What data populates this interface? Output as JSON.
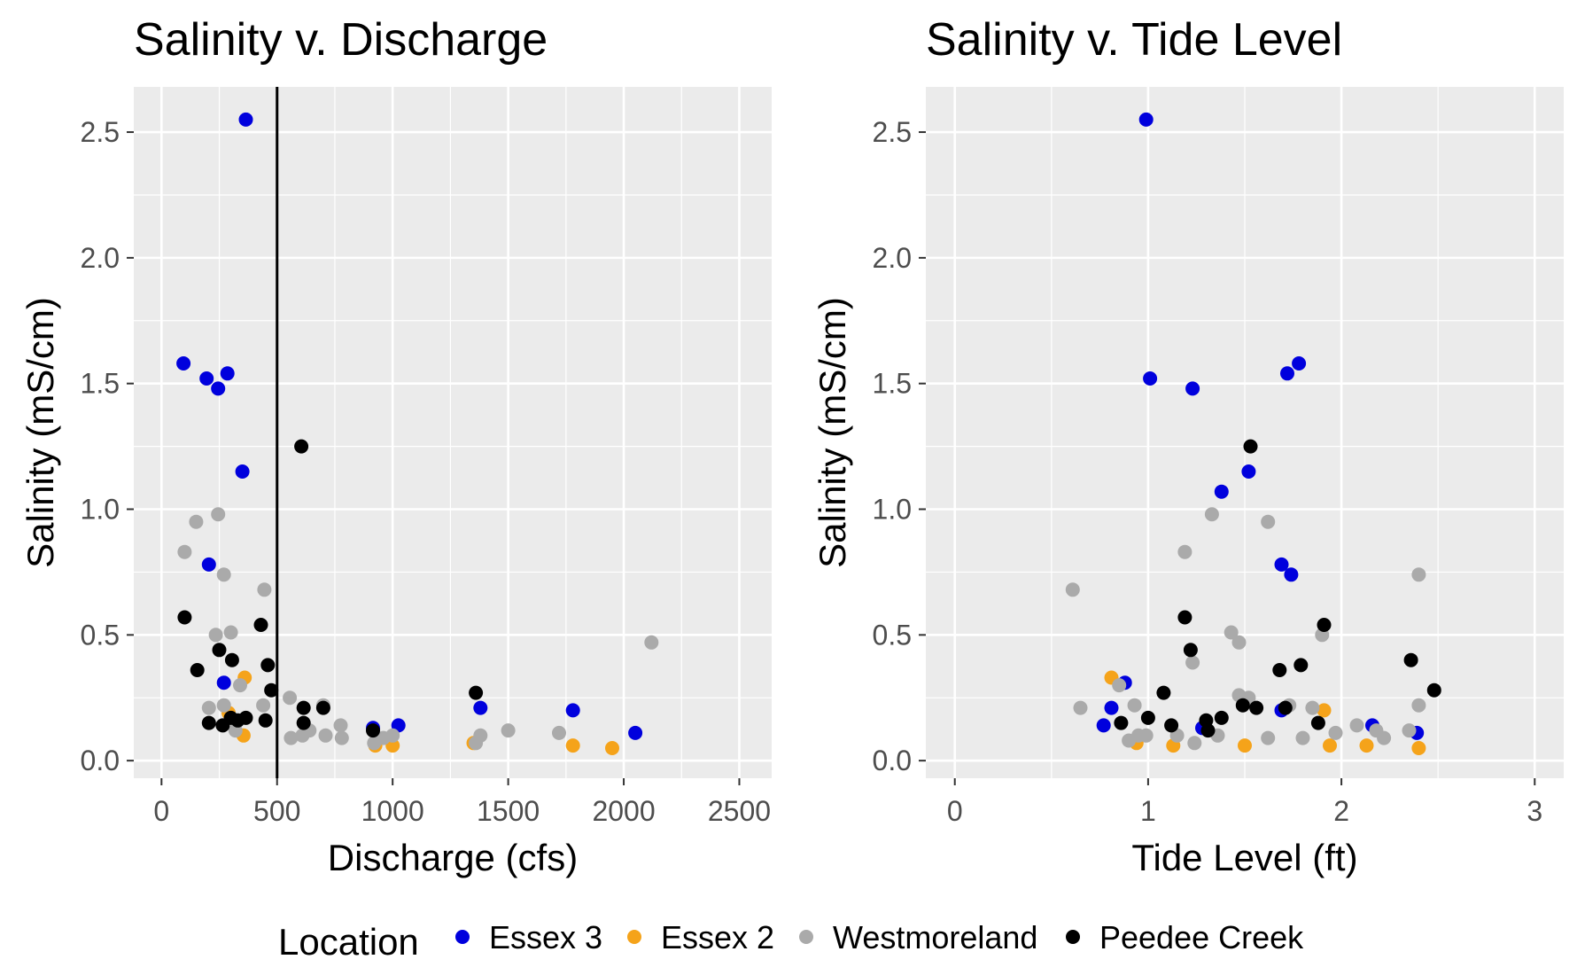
{
  "legend": {
    "title": "Location",
    "entries": [
      {
        "name": "Essex 3",
        "color": "#0000dd"
      },
      {
        "name": "Essex 2",
        "color": "#f5a31a"
      },
      {
        "name": "Westmoreland",
        "color": "#aaaaaa"
      },
      {
        "name": "Peedee Creek",
        "color": "#000000"
      }
    ],
    "placement": "bottom"
  },
  "chart_data": [
    {
      "type": "scatter",
      "title": "Salinity v. Discharge",
      "xlabel": "Discharge (cfs)",
      "ylabel": "Salinity (mS/cm)",
      "xlim": [
        -120,
        2640
      ],
      "ylim": [
        -0.07,
        2.68
      ],
      "xticks": [
        0,
        500,
        1000,
        1500,
        2000,
        2500
      ],
      "xtick_labels": [
        "0",
        "500",
        "1000",
        "1500",
        "2000",
        "2500"
      ],
      "yticks": [
        0,
        0.5,
        1.0,
        1.5,
        2.0,
        2.5
      ],
      "ytick_labels": [
        "0.0",
        "0.5",
        "1.0",
        "1.5",
        "2.0",
        "2.5"
      ],
      "grid": true,
      "vline": 500,
      "series": [
        {
          "name": "Essex 3",
          "points": [
            [
              365,
              2.55
            ],
            [
              95,
              1.58
            ],
            [
              195,
              1.52
            ],
            [
              285,
              1.54
            ],
            [
              245,
              1.48
            ],
            [
              350,
              1.15
            ],
            [
              205,
              0.78
            ],
            [
              270,
              0.31
            ],
            [
              915,
              0.13
            ],
            [
              1025,
              0.14
            ],
            [
              1380,
              0.21
            ],
            [
              1780,
              0.2
            ],
            [
              2050,
              0.11
            ]
          ]
        },
        {
          "name": "Essex 2",
          "points": [
            [
              360,
              0.33
            ],
            [
              290,
              0.19
            ],
            [
              355,
              0.1
            ],
            [
              925,
              0.06
            ],
            [
              1000,
              0.06
            ],
            [
              1350,
              0.07
            ],
            [
              1780,
              0.06
            ],
            [
              1950,
              0.05
            ]
          ]
        },
        {
          "name": "Westmoreland",
          "points": [
            [
              100,
              0.83
            ],
            [
              150,
              0.95
            ],
            [
              245,
              0.98
            ],
            [
              270,
              0.74
            ],
            [
              445,
              0.68
            ],
            [
              235,
              0.5
            ],
            [
              300,
              0.51
            ],
            [
              340,
              0.3
            ],
            [
              270,
              0.22
            ],
            [
              205,
              0.21
            ],
            [
              440,
              0.22
            ],
            [
              320,
              0.12
            ],
            [
              555,
              0.25
            ],
            [
              560,
              0.09
            ],
            [
              610,
              0.1
            ],
            [
              640,
              0.12
            ],
            [
              700,
              0.22
            ],
            [
              710,
              0.1
            ],
            [
              775,
              0.14
            ],
            [
              780,
              0.09
            ],
            [
              920,
              0.07
            ],
            [
              960,
              0.09
            ],
            [
              1000,
              0.1
            ],
            [
              1360,
              0.07
            ],
            [
              1380,
              0.1
            ],
            [
              1500,
              0.12
            ],
            [
              1720,
              0.11
            ],
            [
              2120,
              0.47
            ]
          ]
        },
        {
          "name": "Peedee Creek",
          "points": [
            [
              100,
              0.57
            ],
            [
              155,
              0.36
            ],
            [
              250,
              0.44
            ],
            [
              305,
              0.4
            ],
            [
              430,
              0.54
            ],
            [
              460,
              0.38
            ],
            [
              475,
              0.28
            ],
            [
              205,
              0.15
            ],
            [
              265,
              0.14
            ],
            [
              300,
              0.17
            ],
            [
              330,
              0.16
            ],
            [
              365,
              0.17
            ],
            [
              450,
              0.16
            ],
            [
              605,
              1.25
            ],
            [
              615,
              0.21
            ],
            [
              615,
              0.15
            ],
            [
              700,
              0.21
            ],
            [
              915,
              0.12
            ],
            [
              1360,
              0.27
            ]
          ]
        }
      ]
    },
    {
      "type": "scatter",
      "title": "Salinity v. Tide Level",
      "xlabel": "Tide Level (ft)",
      "ylabel": "Salinity (mS/cm)",
      "xlim": [
        -0.15,
        3.15
      ],
      "ylim": [
        -0.07,
        2.68
      ],
      "xticks": [
        0,
        1,
        2,
        3
      ],
      "xtick_labels": [
        "0",
        "1",
        "2",
        "3"
      ],
      "yticks": [
        0,
        0.5,
        1.0,
        1.5,
        2.0,
        2.5
      ],
      "ytick_labels": [
        "0.0",
        "0.5",
        "1.0",
        "1.5",
        "2.0",
        "2.5"
      ],
      "grid": true,
      "series": [
        {
          "name": "Essex 3",
          "points": [
            [
              0.99,
              2.55
            ],
            [
              1.01,
              1.52
            ],
            [
              1.23,
              1.48
            ],
            [
              1.38,
              1.07
            ],
            [
              1.52,
              1.15
            ],
            [
              1.72,
              1.54
            ],
            [
              1.78,
              1.58
            ],
            [
              1.69,
              0.78
            ],
            [
              1.74,
              0.74
            ],
            [
              0.88,
              0.31
            ],
            [
              0.81,
              0.21
            ],
            [
              0.77,
              0.14
            ],
            [
              1.28,
              0.13
            ],
            [
              1.69,
              0.2
            ],
            [
              2.16,
              0.14
            ],
            [
              2.39,
              0.11
            ]
          ]
        },
        {
          "name": "Essex 2",
          "points": [
            [
              0.81,
              0.33
            ],
            [
              0.94,
              0.07
            ],
            [
              1.13,
              0.06
            ],
            [
              1.5,
              0.06
            ],
            [
              1.91,
              0.2
            ],
            [
              1.94,
              0.06
            ],
            [
              2.13,
              0.06
            ],
            [
              2.4,
              0.05
            ]
          ]
        },
        {
          "name": "Westmoreland",
          "points": [
            [
              0.61,
              0.68
            ],
            [
              0.65,
              0.21
            ],
            [
              0.85,
              0.3
            ],
            [
              0.9,
              0.08
            ],
            [
              0.93,
              0.22
            ],
            [
              0.95,
              0.1
            ],
            [
              0.99,
              0.1
            ],
            [
              1.19,
              0.83
            ],
            [
              1.33,
              0.98
            ],
            [
              1.23,
              0.39
            ],
            [
              1.24,
              0.07
            ],
            [
              1.15,
              0.1
            ],
            [
              1.36,
              0.1
            ],
            [
              1.43,
              0.51
            ],
            [
              1.47,
              0.47
            ],
            [
              1.47,
              0.26
            ],
            [
              1.52,
              0.25
            ],
            [
              1.62,
              0.95
            ],
            [
              1.62,
              0.09
            ],
            [
              1.73,
              0.22
            ],
            [
              1.8,
              0.09
            ],
            [
              1.85,
              0.21
            ],
            [
              1.9,
              0.5
            ],
            [
              1.97,
              0.11
            ],
            [
              2.08,
              0.14
            ],
            [
              2.18,
              0.12
            ],
            [
              2.22,
              0.09
            ],
            [
              2.35,
              0.12
            ],
            [
              2.4,
              0.74
            ],
            [
              2.4,
              0.22
            ]
          ]
        },
        {
          "name": "Peedee Creek",
          "points": [
            [
              1.19,
              0.57
            ],
            [
              1.22,
              0.44
            ],
            [
              1.53,
              1.25
            ],
            [
              1.91,
              0.54
            ],
            [
              1.68,
              0.36
            ],
            [
              1.79,
              0.38
            ],
            [
              2.36,
              0.4
            ],
            [
              2.48,
              0.28
            ],
            [
              1.08,
              0.27
            ],
            [
              1.0,
              0.17
            ],
            [
              0.86,
              0.15
            ],
            [
              1.12,
              0.14
            ],
            [
              1.3,
              0.16
            ],
            [
              1.31,
              0.12
            ],
            [
              1.38,
              0.17
            ],
            [
              1.49,
              0.22
            ],
            [
              1.56,
              0.21
            ],
            [
              1.71,
              0.21
            ],
            [
              1.88,
              0.15
            ]
          ]
        }
      ]
    }
  ]
}
